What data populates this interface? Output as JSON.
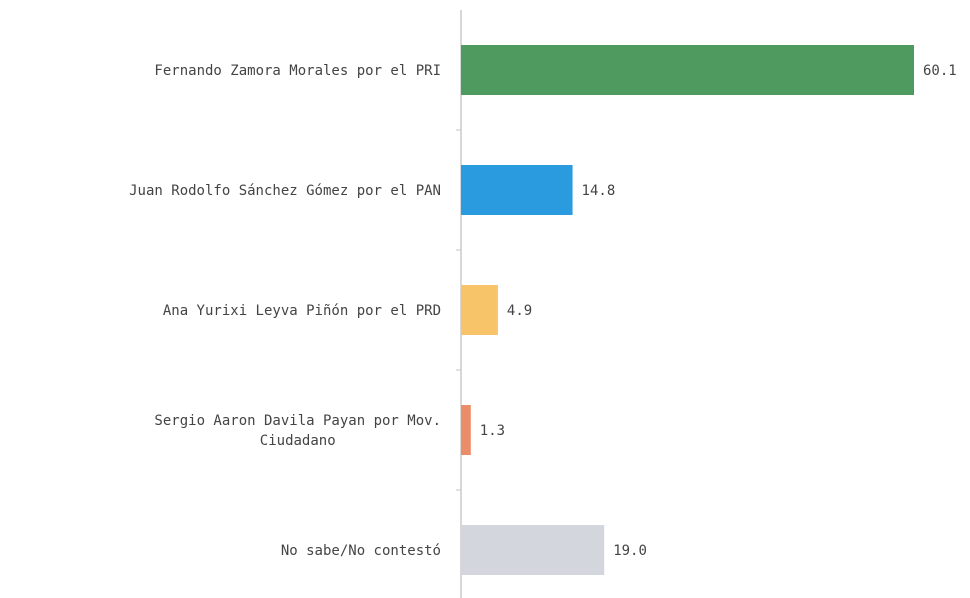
{
  "chart_data": {
    "type": "bar",
    "orientation": "horizontal",
    "categories": [
      [
        "Fernando Zamora Morales por el PRI"
      ],
      [
        "Juan Rodolfo Sánchez Gómez por el PAN"
      ],
      [
        "Ana Yurixi Leyva Piñón por el PRD"
      ],
      [
        "Sergio Aaron Davila Payan por Mov.",
        "Ciudadano"
      ],
      [
        "No sabe/No contestó"
      ]
    ],
    "values": [
      60.1,
      14.8,
      4.9,
      1.3,
      19.0
    ],
    "value_labels": [
      "60.1",
      "14.8",
      "4.9",
      "1.3",
      "19.0"
    ],
    "colors": [
      "#4e9a5f",
      "#2b9be0",
      "#f7c46a",
      "#ec8d69",
      "#d3d6dd"
    ],
    "xlim": [
      0,
      60.1
    ],
    "title": "",
    "xlabel": "",
    "ylabel": "",
    "grid": false,
    "legend": "none"
  }
}
